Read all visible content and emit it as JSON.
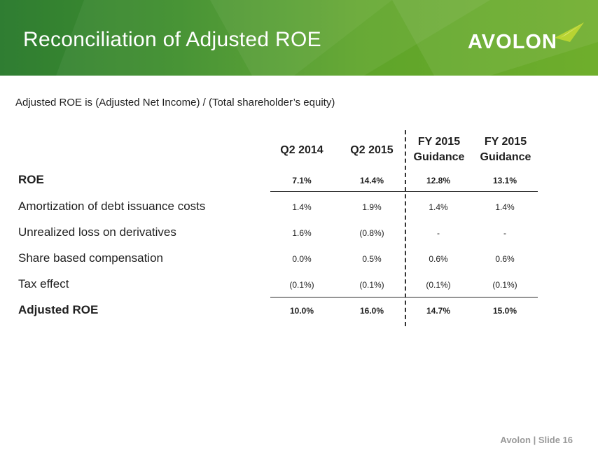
{
  "slide": {
    "title": "Reconciliation of Adjusted ROE",
    "logo_text": "AVOLON",
    "subtitle": "Adjusted ROE is (Adjusted Net Income) / (Total shareholder’s equity)",
    "footer": "Avolon | Slide 16",
    "colors": {
      "banner_dark": "#2f7d32",
      "banner_light": "#6fae2c",
      "logo_accent": "#b8d432"
    }
  },
  "table": {
    "columns": [
      {
        "line1": "Q2 2014",
        "line2": ""
      },
      {
        "line1": "Q2 2015",
        "line2": ""
      },
      {
        "line1": "FY 2015",
        "line2": "Guidance"
      },
      {
        "line1": "FY 2015",
        "line2": "Guidance"
      }
    ],
    "rows": [
      {
        "label": "ROE",
        "values": [
          "7.1%",
          "14.4%",
          "12.8%",
          "13.1%"
        ]
      },
      {
        "label": "Amortization of debt issuance costs",
        "values": [
          "1.4%",
          "1.9%",
          "1.4%",
          "1.4%"
        ]
      },
      {
        "label": "Unrealized loss on derivatives",
        "values": [
          "1.6%",
          "(0.8%)",
          "-",
          "-"
        ]
      },
      {
        "label": "Share based compensation",
        "values": [
          "0.0%",
          "0.5%",
          "0.6%",
          "0.6%"
        ]
      },
      {
        "label": "Tax effect",
        "values": [
          "(0.1%)",
          "(0.1%)",
          "(0.1%)",
          "(0.1%)"
        ]
      },
      {
        "label": "Adjusted ROE",
        "values": [
          "10.0%",
          "16.0%",
          "14.7%",
          "15.0%"
        ]
      }
    ]
  }
}
